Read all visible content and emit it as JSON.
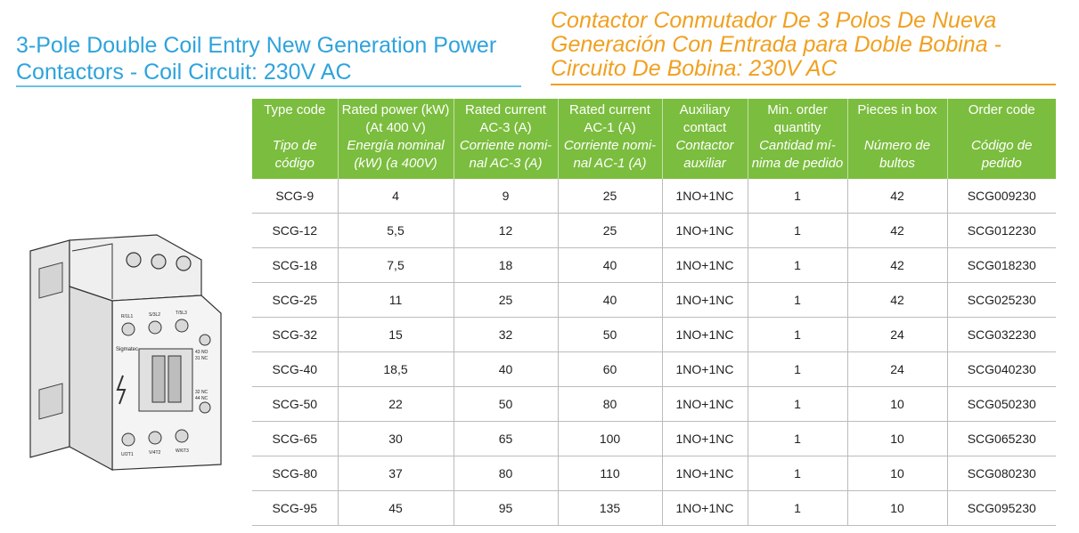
{
  "header": {
    "title_en": "3-Pole Double Coil Entry New Generation Power Contactors - Coil Circuit: 230V AC",
    "title_es": "Contactor Conmutador De 3 Polos De Nueva Generación Con Entrada para Doble Bobina - Circuito De Bobina: 230V AC"
  },
  "product_image": {
    "terminal_top_labels": [
      "R/1L1",
      "S/3L2",
      "T/5L3"
    ],
    "terminal_bottom_labels": [
      "U/2T1",
      "V/4T2",
      "W/6T3"
    ],
    "right_labels": [
      "43 NO",
      "31 NC",
      "32 NC",
      "44 NC"
    ],
    "side_label": "Sigmatec"
  },
  "table": {
    "columns": [
      {
        "en": "Type code",
        "es": "Tipo de código"
      },
      {
        "en": "Rated power (kW) (At 400 V)",
        "es": "Energía nominal (kW) (a 400V)"
      },
      {
        "en": "Rated current AC-3 (A)",
        "es": "Corriente nomi-nal AC-3 (A)"
      },
      {
        "en": "Rated current AC-1 (A)",
        "es": "Corriente nomi-nal AC-1 (A)"
      },
      {
        "en": "Auxiliary contact",
        "es": "Contactor auxiliar"
      },
      {
        "en": "Min. order quantity",
        "es": "Cantidad mí-nima de pedido"
      },
      {
        "en": "Pieces in box",
        "es": "Número de bultos"
      },
      {
        "en": "Order code",
        "es": "Código de pedido"
      }
    ],
    "rows": [
      [
        "SCG-9",
        "4",
        "9",
        "25",
        "1NO+1NC",
        "1",
        "42",
        "SCG009230"
      ],
      [
        "SCG-12",
        "5,5",
        "12",
        "25",
        "1NO+1NC",
        "1",
        "42",
        "SCG012230"
      ],
      [
        "SCG-18",
        "7,5",
        "18",
        "40",
        "1NO+1NC",
        "1",
        "42",
        "SCG018230"
      ],
      [
        "SCG-25",
        "11",
        "25",
        "40",
        "1NO+1NC",
        "1",
        "42",
        "SCG025230"
      ],
      [
        "SCG-32",
        "15",
        "32",
        "50",
        "1NO+1NC",
        "1",
        "24",
        "SCG032230"
      ],
      [
        "SCG-40",
        "18,5",
        "40",
        "60",
        "1NO+1NC",
        "1",
        "24",
        "SCG040230"
      ],
      [
        "SCG-50",
        "22",
        "50",
        "80",
        "1NO+1NC",
        "1",
        "10",
        "SCG050230"
      ],
      [
        "SCG-65",
        "30",
        "65",
        "100",
        "1NO+1NC",
        "1",
        "10",
        "SCG065230"
      ],
      [
        "SCG-80",
        "37",
        "80",
        "110",
        "1NO+1NC",
        "1",
        "10",
        "SCG080230"
      ],
      [
        "SCG-95",
        "45",
        "95",
        "135",
        "1NO+1NC",
        "1",
        "10",
        "SCG095230"
      ]
    ]
  }
}
